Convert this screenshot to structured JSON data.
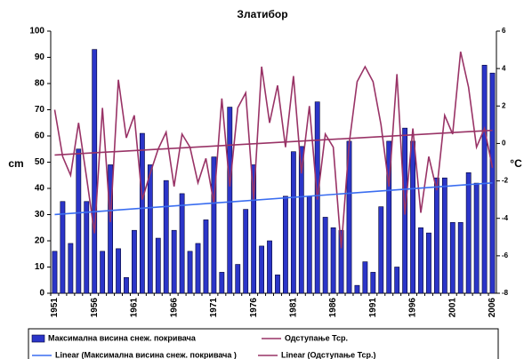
{
  "chart_data": {
    "type": "bar-line",
    "title": "Златибор",
    "ylabel": "cm",
    "y2label": "°C",
    "categories": [
      "1951",
      null,
      null,
      null,
      null,
      "1956",
      null,
      null,
      null,
      null,
      "1961",
      null,
      null,
      null,
      null,
      "1966",
      null,
      null,
      null,
      null,
      "1971",
      null,
      null,
      null,
      null,
      "1976",
      null,
      null,
      null,
      null,
      "1981",
      null,
      null,
      null,
      null,
      "1986",
      null,
      null,
      null,
      null,
      "1991",
      null,
      null,
      null,
      null,
      "1996",
      null,
      null,
      null,
      null,
      "2001",
      null,
      null,
      null,
      null,
      "2006"
    ],
    "series": [
      {
        "name": "Максимална висина снеж. покривача",
        "color": "#2b35c8",
        "kind": "bar",
        "axis": "y",
        "values": [
          16,
          35,
          19,
          55,
          35,
          93,
          16,
          49,
          17,
          6,
          24,
          61,
          49,
          21,
          43,
          24,
          38,
          16,
          19,
          28,
          52,
          8,
          71,
          11,
          32,
          49,
          18,
          20,
          7,
          37,
          54,
          56,
          37,
          73,
          29,
          25,
          24,
          58,
          3,
          12,
          8,
          33,
          58,
          10,
          63,
          58,
          25,
          23,
          44,
          44,
          27,
          27,
          46,
          42,
          87,
          84
        ]
      },
      {
        "name": "Одступање Тср.",
        "color": "#993366",
        "kind": "line",
        "axis": "y2",
        "values": [
          1.8,
          -0.7,
          -1.7,
          1.1,
          -1.8,
          -4.8,
          1.9,
          -4.2,
          3.4,
          0.3,
          1.5,
          -3.0,
          -1.6,
          -0.3,
          0.6,
          -2.3,
          0.5,
          -0.2,
          -2.1,
          -0.8,
          -3.2,
          2.4,
          -2.3,
          1.9,
          2.7,
          -3.0,
          4.1,
          1.1,
          3.1,
          -0.2,
          3.6,
          -1.6,
          2.0,
          -3.0,
          0.5,
          -0.2,
          -5.6,
          0,
          3.3,
          4.1,
          3.3,
          1.0,
          -2.3,
          3.7,
          -3.8,
          0.8,
          -3.7,
          -0.7,
          -2.5,
          1.5,
          0.5,
          4.9,
          3.0,
          -0.2,
          0.8,
          -1.3
        ]
      }
    ],
    "trendlines": [
      {
        "name": "Linear (Максимална висина снеж. покривача )",
        "color": "#3a6df0",
        "series": 0
      },
      {
        "name": "Linear (Одступање Тср.)",
        "color": "#993366",
        "series": 1
      }
    ],
    "ylim": [
      0,
      100
    ],
    "yticks": [
      0,
      10,
      20,
      30,
      40,
      50,
      60,
      70,
      80,
      90,
      100
    ],
    "y2lim": [
      -8,
      6
    ],
    "y2ticks": [
      -8,
      -6,
      -4,
      -2,
      0,
      2,
      4,
      6
    ],
    "grid": false
  }
}
